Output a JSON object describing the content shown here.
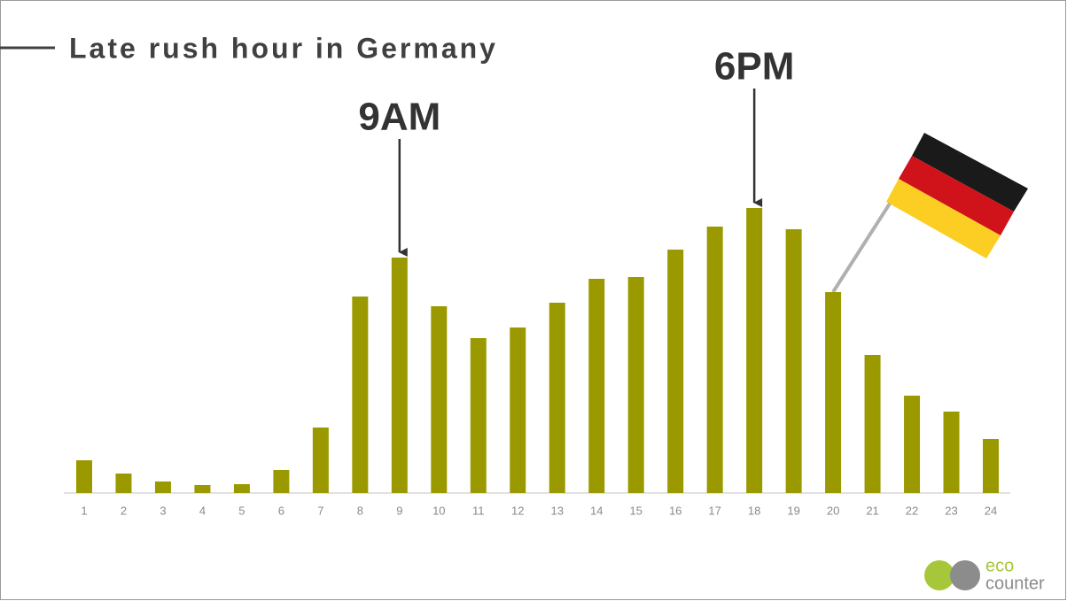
{
  "chart_data": {
    "type": "bar",
    "title": "Late rush hour in Germany",
    "categories": [
      "1",
      "2",
      "3",
      "4",
      "5",
      "6",
      "7",
      "8",
      "9",
      "10",
      "11",
      "12",
      "13",
      "14",
      "15",
      "16",
      "17",
      "18",
      "19",
      "20",
      "21",
      "22",
      "23",
      "24"
    ],
    "values": [
      37,
      22,
      13,
      9,
      10,
      26,
      74,
      222,
      266,
      211,
      175,
      187,
      215,
      242,
      244,
      275,
      301,
      322,
      298,
      227,
      156,
      110,
      92,
      61
    ],
    "color": "#9a9a00",
    "ylim": [
      0,
      340
    ],
    "annotations": [
      {
        "text": "9AM",
        "x": "9"
      },
      {
        "text": "6PM",
        "x": "18"
      }
    ]
  },
  "logo": {
    "line1": "eco",
    "line2": "counter"
  }
}
